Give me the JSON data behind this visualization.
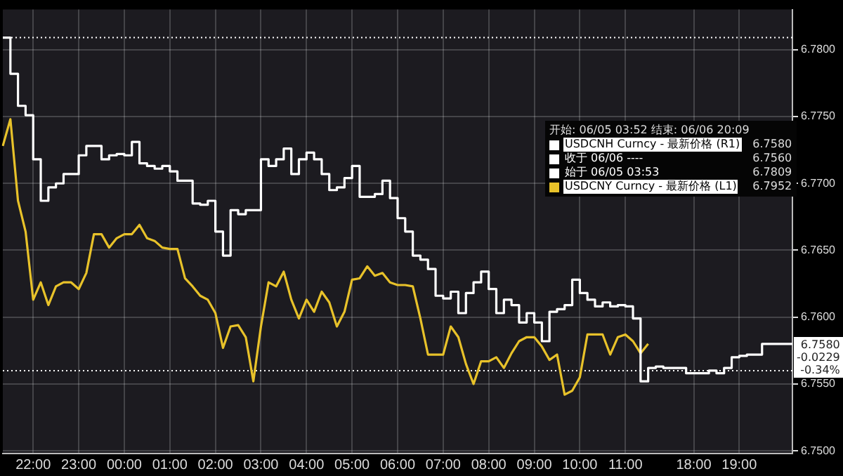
{
  "chart_data": {
    "type": "line",
    "legend_title": "开始: 06/05 03:52 结束: 06/06 20:09",
    "legend": "right",
    "grid": true,
    "marker": "none",
    "categories": [
      null,
      null,
      null,
      null,
      "22:00",
      null,
      null,
      null,
      null,
      null,
      "23:00",
      null,
      null,
      null,
      null,
      null,
      "00:00",
      null,
      null,
      null,
      null,
      null,
      "01:00",
      null,
      null,
      null,
      null,
      null,
      "02:00",
      null,
      null,
      null,
      null,
      null,
      "03:00",
      null,
      null,
      null,
      null,
      null,
      "04:00",
      null,
      null,
      null,
      null,
      null,
      "05:00",
      null,
      null,
      null,
      null,
      null,
      "06:00",
      null,
      null,
      null,
      null,
      null,
      "07:00",
      null,
      null,
      null,
      null,
      null,
      "08:00",
      null,
      null,
      null,
      null,
      null,
      "09:00",
      null,
      null,
      null,
      null,
      null,
      "10:00",
      null,
      null,
      null,
      null,
      null,
      "11:00",
      null,
      null,
      null,
      null,
      null,
      null,
      null,
      null,
      "18:00",
      null,
      null,
      null,
      null,
      null,
      "19:00",
      null,
      null,
      null,
      null,
      null,
      null,
      null
    ],
    "series": [
      {
        "name": "USDCNH Curncy - 最新价格 (R1)",
        "type": "step",
        "color": "#ffffff",
        "values": [
          6.7809,
          6.7809,
          6.7782,
          6.7758,
          6.7751,
          6.7718,
          6.7687,
          6.7697,
          6.77,
          6.7707,
          6.7707,
          6.7721,
          6.7728,
          6.7728,
          6.7718,
          6.7721,
          6.7722,
          6.7721,
          6.7731,
          6.7715,
          6.7713,
          6.7711,
          6.7713,
          6.7709,
          6.7702,
          6.7702,
          6.7685,
          6.7684,
          6.7687,
          6.7664,
          6.7646,
          6.768,
          6.7677,
          6.768,
          6.768,
          6.7718,
          6.7713,
          6.7718,
          6.7726,
          6.7707,
          6.7718,
          6.7723,
          6.7718,
          6.7707,
          6.7695,
          6.7697,
          6.7704,
          6.7713,
          6.769,
          6.769,
          6.7692,
          6.7702,
          6.7689,
          6.7674,
          6.7664,
          6.7646,
          6.7643,
          6.7636,
          6.7616,
          6.7614,
          6.7619,
          6.7603,
          6.7618,
          6.7626,
          6.7634,
          6.7621,
          6.7603,
          6.7613,
          6.7609,
          6.7596,
          6.7603,
          6.7596,
          6.7582,
          6.7604,
          6.7606,
          6.7609,
          6.7628,
          6.7618,
          6.7613,
          6.7608,
          6.7611,
          6.7608,
          6.7609,
          6.7608,
          6.7599,
          6.7552,
          6.7562,
          6.7563,
          6.7562,
          6.7562,
          6.7562,
          6.7558,
          6.7558,
          6.7558,
          6.756,
          6.7558,
          6.7562,
          6.757,
          6.7571,
          6.7572,
          6.7572,
          6.758,
          6.758,
          6.758,
          6.758
        ]
      },
      {
        "name": "USDCNY Curncy - 最新价格 (L1)",
        "type": "line",
        "color": "#e8c22a",
        "values": [
          6.7728,
          6.7748,
          6.7687,
          6.7664,
          6.7613,
          6.7626,
          6.7609,
          6.7623,
          6.7626,
          6.7626,
          6.7621,
          6.7633,
          6.7662,
          6.7662,
          6.7652,
          6.7659,
          6.7662,
          6.7662,
          6.7669,
          6.7659,
          6.7657,
          6.7652,
          6.7651,
          6.7651,
          6.7629,
          6.7623,
          6.7616,
          6.7613,
          6.7603,
          6.7577,
          6.7593,
          6.7594,
          6.7585,
          6.7552,
          6.7593,
          6.7626,
          6.7623,
          6.7634,
          6.7613,
          6.7599,
          6.7613,
          6.7604,
          6.7619,
          6.7611,
          6.7593,
          6.7604,
          6.7628,
          6.7629,
          6.7638,
          6.7631,
          6.7633,
          6.7626,
          6.7624,
          6.7624,
          6.7623,
          6.7599,
          6.7572,
          6.7572,
          6.7572,
          6.7593,
          6.7585,
          6.7565,
          6.755,
          6.7567,
          6.7567,
          6.757,
          6.7562,
          6.7573,
          6.7582,
          6.7585,
          6.7585,
          6.7578,
          6.7568,
          6.7572,
          6.7542,
          6.7545,
          6.7555,
          6.7587,
          6.7587,
          6.7587,
          6.7572,
          6.7585,
          6.7587,
          6.7582,
          6.7573,
          6.758,
          null,
          null,
          null,
          null,
          null,
          null,
          null,
          null,
          null,
          null,
          null,
          null,
          null,
          null,
          null,
          null,
          null,
          null,
          null
        ]
      }
    ],
    "ylim": [
      6.7498,
      6.783
    ],
    "yticks": [
      {
        "value": 6.75,
        "label": "6.7500"
      },
      {
        "value": 6.755,
        "label": "6.7550"
      },
      {
        "value": 6.76,
        "label": "6.7600"
      },
      {
        "value": 6.765,
        "label": "6.7650"
      },
      {
        "value": 6.77,
        "label": "6.7700"
      },
      {
        "value": 6.775,
        "label": "6.7750"
      },
      {
        "value": 6.78,
        "label": "6.7800"
      }
    ],
    "ref_lines": [
      {
        "axis": "y",
        "value": 6.756,
        "color": "#ffffff",
        "line_style": "dotted"
      },
      {
        "axis": "y",
        "value": 6.7809,
        "color": "#ffffff",
        "line_style": "dotted"
      }
    ],
    "annotations": [
      "6.7580",
      "收于 06/06 ----",
      "6.7560",
      "始于 06/05 03:53",
      "6.7809",
      "6.7952",
      "6.7580",
      "-0.0229",
      "-0.34%"
    ]
  }
}
